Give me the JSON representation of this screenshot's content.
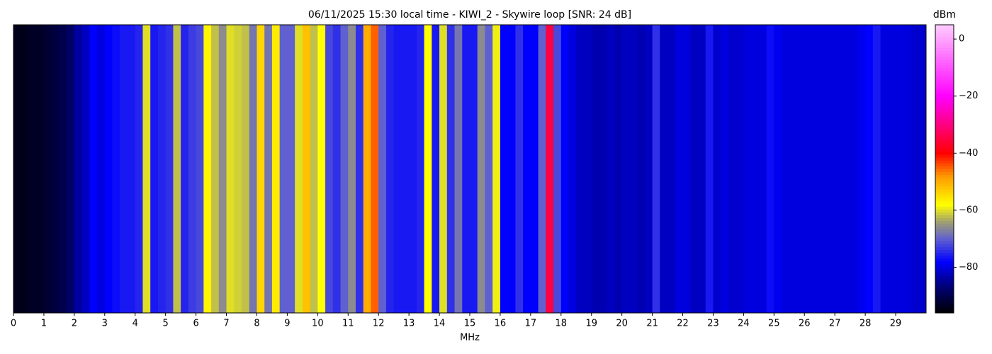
{
  "chart_data": {
    "type": "heatmap",
    "title": "06/11/2025 15:30 local time - KIWI_2 - Skywire loop [SNR: 24 dB]",
    "x_label": "MHz",
    "colorbar_label": "dBm",
    "xlim": [
      0,
      30
    ],
    "xticks": [
      0,
      1,
      2,
      3,
      4,
      5,
      6,
      7,
      8,
      9,
      10,
      11,
      12,
      13,
      14,
      15,
      16,
      17,
      18,
      19,
      20,
      21,
      22,
      23,
      24,
      25,
      26,
      27,
      28,
      29
    ],
    "bin_width": 0.25,
    "values": [
      -94,
      -94,
      -93,
      -93,
      -92,
      -91,
      -90,
      -88,
      -84,
      -82,
      -78,
      -80,
      -78,
      -77,
      -76,
      -76,
      -75,
      -60,
      -76,
      -75,
      -74,
      -62,
      -75,
      -73,
      -72,
      -57,
      -62,
      -66,
      -60,
      -61,
      -62,
      -68,
      -54,
      -68,
      -56,
      -70,
      -70,
      -60,
      -52,
      -62,
      -58,
      -72,
      -74,
      -70,
      -66,
      -74,
      -50,
      -45,
      -70,
      -75,
      -76,
      -76,
      -76,
      -75,
      -58,
      -76,
      -60,
      -74,
      -68,
      -76,
      -76,
      -66,
      -70,
      -59,
      -78,
      -78,
      -74,
      -78,
      -78,
      -70,
      -35,
      -72,
      -78,
      -80,
      -82,
      -82,
      -83,
      -83,
      -82,
      -83,
      -82,
      -82,
      -83,
      -82,
      -74,
      -82,
      -82,
      -80,
      -80,
      -82,
      -82,
      -76,
      -81,
      -80,
      -81,
      -81,
      -80,
      -80,
      -80,
      -77,
      -79,
      -80,
      -80,
      -80,
      -80,
      -80,
      -80,
      -80,
      -80,
      -80,
      -80,
      -79,
      -78,
      -76,
      -80,
      -80,
      -80,
      -80,
      -81,
      -81
    ],
    "zlim": [
      -96,
      5
    ],
    "zticks": [
      0,
      {
        "value": -20,
        "label": "−20"
      },
      {
        "value": -40,
        "label": "−40"
      },
      {
        "value": -60,
        "label": "−60"
      },
      {
        "value": -80,
        "label": "−80"
      }
    ],
    "colormap": [
      {
        "value": -96,
        "color": "#000000"
      },
      {
        "value": -86,
        "color": "#000080"
      },
      {
        "value": -78,
        "color": "#0000ff"
      },
      {
        "value": -70,
        "color": "#6060d0"
      },
      {
        "value": -64,
        "color": "#a0a070"
      },
      {
        "value": -58,
        "color": "#ffff00"
      },
      {
        "value": -48,
        "color": "#ff9900"
      },
      {
        "value": -40,
        "color": "#ff0000"
      },
      {
        "value": -20,
        "color": "#ff00ff"
      },
      {
        "value": 5,
        "color": "#ffccff"
      }
    ]
  }
}
